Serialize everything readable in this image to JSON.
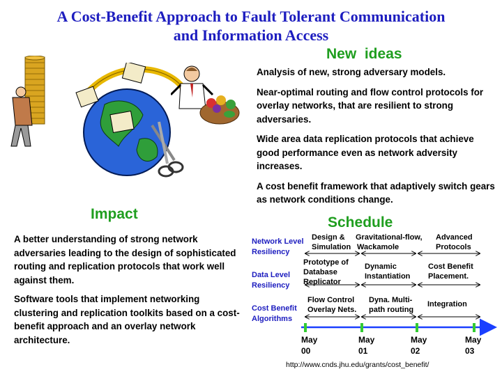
{
  "title": {
    "line1": "A Cost-Benefit Approach to Fault Tolerant Communication",
    "line2": "and Information Access"
  },
  "new_ideas": {
    "heading": "New  ideas",
    "items": [
      "Analysis of new, strong adversary models.",
      "Near-optimal routing and flow control protocols for overlay networks, that are resilient to strong adversaries.",
      "Wide area data replication protocols that achieve good performance even as network adversity increases.",
      "A cost benefit framework that adaptively switch gears as network conditions change."
    ]
  },
  "impact": {
    "heading": "Impact",
    "items": [
      "A better understanding of strong network adversaries leading to the design of sophisticated routing and replication protocols that work well against them.",
      "Software tools that implement networking clustering and replication toolkits based on a cost-benefit approach and an overlay network architecture."
    ]
  },
  "schedule": {
    "heading": "Schedule",
    "rows": [
      {
        "label_line1": "Network Level",
        "label_line2": "Resiliency",
        "tasks": [
          [
            "Design &",
            "Simulation"
          ],
          [
            "Gravitational-flow,",
            "Wackamole"
          ],
          [
            "Advanced",
            "Protocols"
          ]
        ]
      },
      {
        "label_line1": "Data Level",
        "label_line2": "Resiliency",
        "tasks": [
          [
            "Prototype of",
            "Database",
            "Replicator"
          ],
          [
            "Dynamic",
            "Instantiation"
          ],
          [
            "Cost Benefit",
            "Placement."
          ]
        ]
      },
      {
        "label_line1": "Cost Benefit",
        "label_line2": "Algorithms",
        "tasks": [
          [
            "Flow Control",
            "Overlay Nets."
          ],
          [
            "Dyna. Multi-",
            "path routing"
          ],
          [
            "Integration"
          ]
        ]
      }
    ],
    "timeline": [
      {
        "month": "May",
        "year": "00"
      },
      {
        "month": "May",
        "year": "01"
      },
      {
        "month": "May",
        "year": "02"
      },
      {
        "month": "May",
        "year": "03"
      }
    ],
    "colors": {
      "label": "#1d1dbf",
      "timeline": "#1a3fff",
      "tick": "#33cc33"
    }
  },
  "clipart": {
    "left_person": "person-carrying-coin-stack-illustration",
    "globe": "globe-with-computers-and-scissors-illustration",
    "right_person": "presenter-with-produce-basket-illustration"
  },
  "url": "http://www.cnds.jhu.edu/grants/cost_benefit/",
  "colors": {
    "title": "#1d1dbf",
    "heading": "#1f9e1f"
  }
}
